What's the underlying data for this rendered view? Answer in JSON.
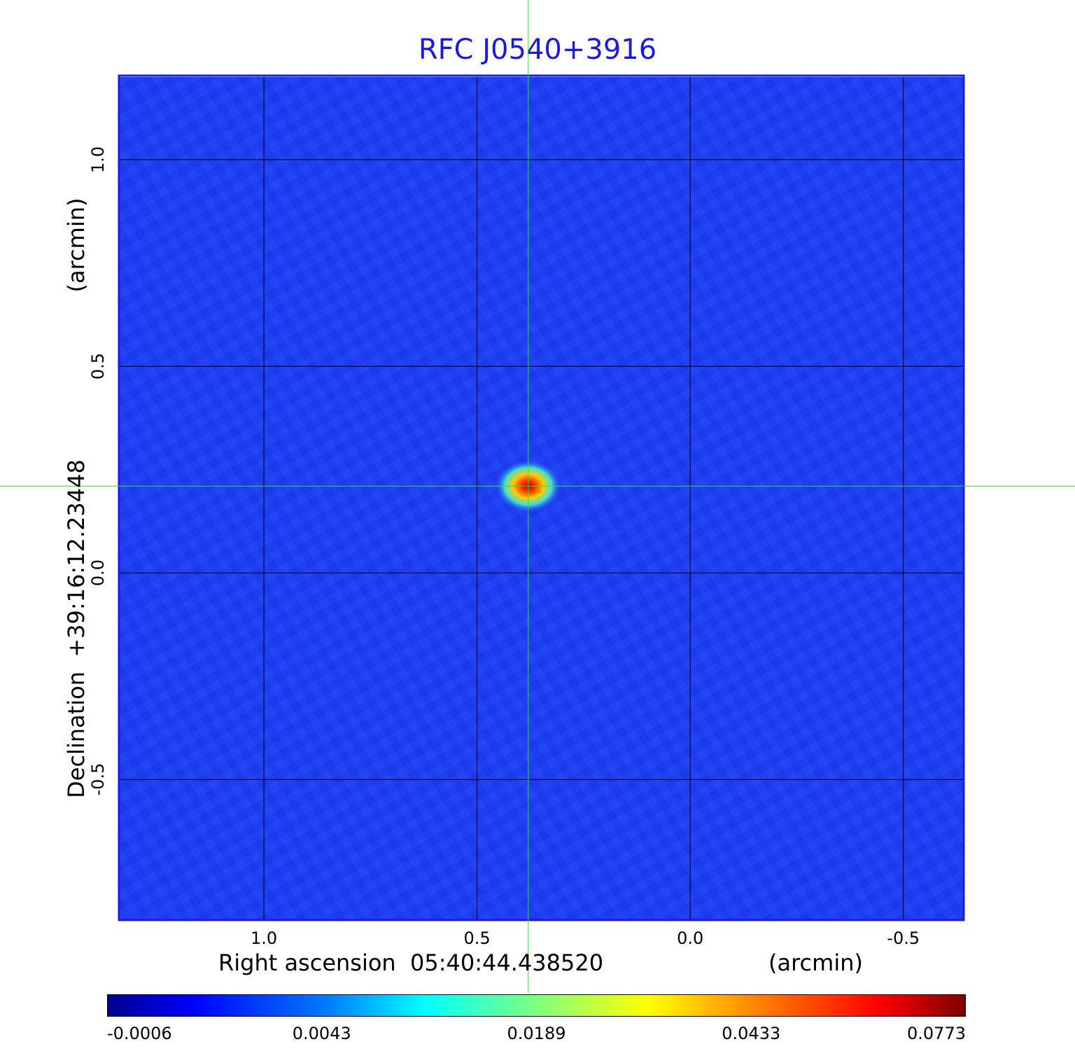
{
  "chart_data": {
    "type": "heatmap",
    "title": "RFC J0540+3916",
    "xlabel": "Right ascension  05:40:44.438520",
    "xunit": "(arcmin)",
    "ylabel": "Declination  +39:16:12.23448",
    "yunit": "(arcmin)",
    "xlim": [
      1.34,
      -0.64
    ],
    "ylim": [
      -0.84,
      1.2
    ],
    "x_ticks": [
      "1.0",
      "0.5",
      "0.0",
      "-0.5"
    ],
    "x_tick_values": [
      1.0,
      0.5,
      0.0,
      -0.5
    ],
    "y_ticks": [
      "1.0",
      "0.5",
      "0.0",
      "-0.5"
    ],
    "y_tick_values": [
      1.0,
      0.5,
      0.0,
      -0.5
    ],
    "grid": true,
    "crosshair": {
      "x": 0.38,
      "y": 0.21
    },
    "source_peak": {
      "x": 0.38,
      "y": 0.21,
      "value": 0.0773
    },
    "colorbar": {
      "colormap": "jet",
      "tick_labels": [
        "-0.0006",
        "0.0043",
        "0.0189",
        "0.0433",
        "0.0773"
      ]
    }
  },
  "colors": {
    "title": "#1a1ae0",
    "frame": "#1a1ae0",
    "crosshair": "#33dd33",
    "background_field": "#1e3cf0"
  }
}
